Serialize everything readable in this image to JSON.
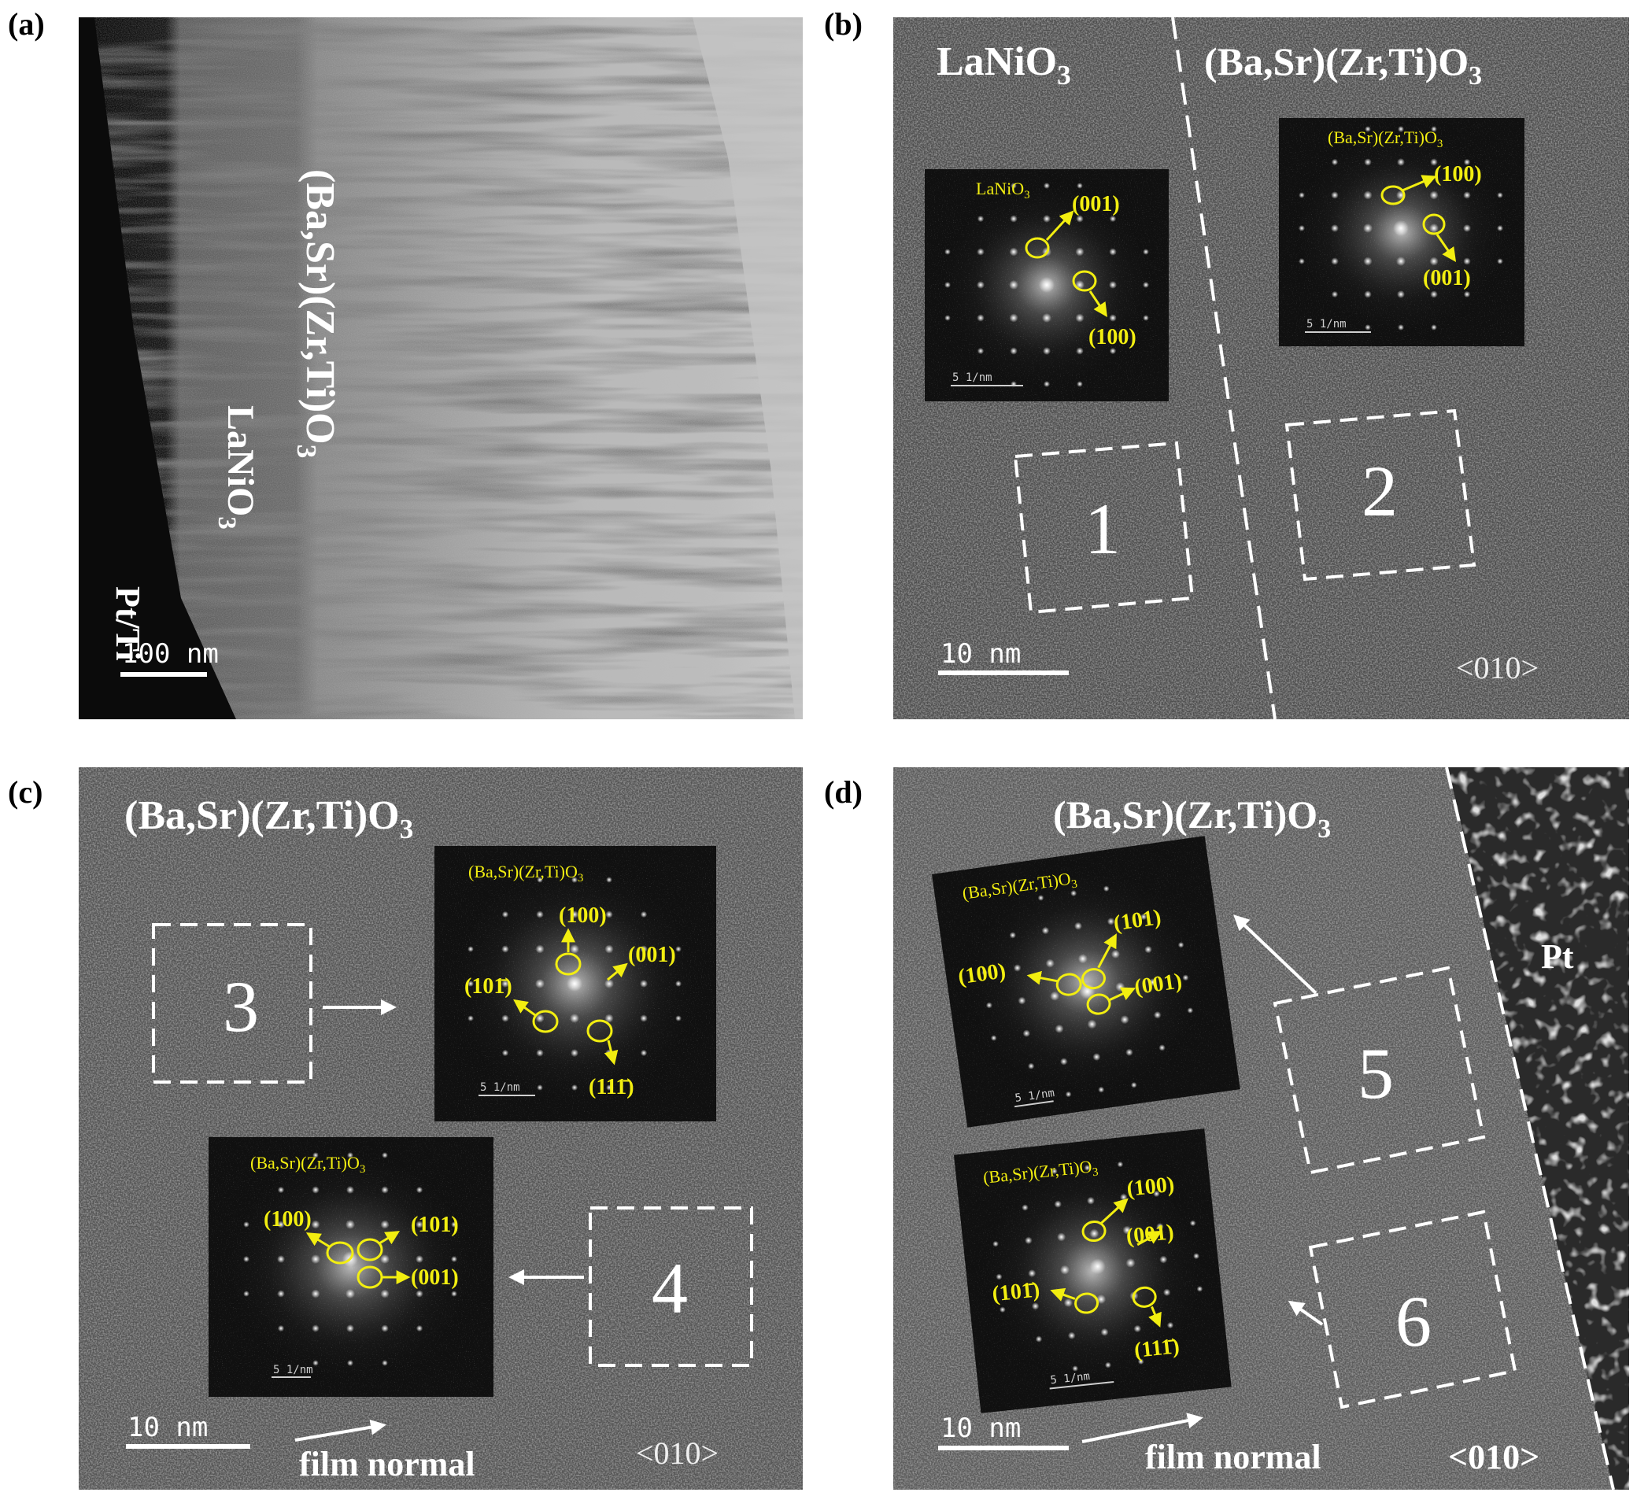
{
  "panels": {
    "a": {
      "label": "(a)",
      "layers": {
        "pt": "Pt/Ti",
        "lno": "LaNiO",
        "lno_sub": "3",
        "bszt": "(Ba,Sr)(Zr,Ti)O",
        "bszt_sub": "3"
      },
      "scale_bar": "100 nm"
    },
    "b": {
      "label": "(b)",
      "region_left": "LaNiO",
      "region_left_sub": "3",
      "region_right": "(Ba,Sr)(Zr,Ti)O",
      "region_right_sub": "3",
      "inset1": {
        "title": "LaNiO",
        "title_sub": "3",
        "spots": [
          "(001)",
          "(100)"
        ],
        "scale": "5 1/nm"
      },
      "inset2": {
        "title": "(Ba,Sr)(Zr,Ti)O",
        "title_sub": "3",
        "spots": [
          "(100)",
          "(001)"
        ],
        "scale": "5 1/nm"
      },
      "boxes": [
        "1",
        "2"
      ],
      "scale_bar": "10 nm",
      "zone_axis": "<010>"
    },
    "c": {
      "label": "(c)",
      "title": "(Ba,Sr)(Zr,Ti)O",
      "title_sub": "3",
      "inset_top": {
        "title": "(Ba,Sr)(Zr,Ti)O",
        "title_sub": "3",
        "spots": [
          "(100)",
          "(001)",
          "(101̄)",
          "(111̄)"
        ],
        "scale": "5 1/nm"
      },
      "inset_bottom": {
        "title": "(Ba,Sr)(Zr,Ti)O",
        "title_sub": "3",
        "spots": [
          "(100)",
          "(101)",
          "(001)"
        ],
        "scale": "5 1/nm"
      },
      "boxes": [
        "3",
        "4"
      ],
      "scale_bar": "10 nm",
      "direction": "film normal",
      "zone_axis": "<010>"
    },
    "d": {
      "label": "(d)",
      "title": "(Ba,Sr)(Zr,Ti)O",
      "title_sub": "3",
      "region_right": "Pt",
      "inset_top": {
        "title": "(Ba,Sr)(Zr,Ti)O",
        "title_sub": "3",
        "spots": [
          "(100)",
          "(101)",
          "(001)"
        ],
        "scale": "5 1/nm"
      },
      "inset_bottom": {
        "title": "(Ba,Sr)(Zr,Ti)O",
        "title_sub": "3",
        "spots": [
          "(100)",
          "(001)",
          "(101̄)",
          "(111̄)"
        ],
        "scale": "5 1/nm"
      },
      "boxes": [
        "5",
        "6"
      ],
      "scale_bar": "10 nm",
      "direction": "film normal",
      "zone_axis": "<010>"
    }
  }
}
